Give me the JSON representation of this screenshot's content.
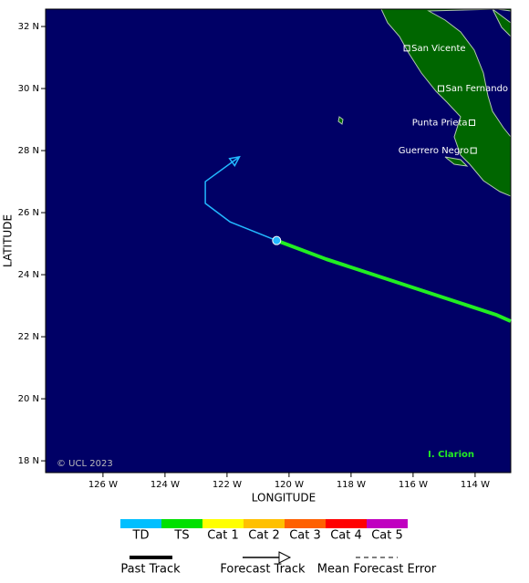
{
  "map": {
    "xaxis_label": "LONGITUDE",
    "yaxis_label": "LATITUDE",
    "lonlim": [
      -127.85,
      -112.85
    ],
    "latlim": [
      17.62,
      32.56
    ],
    "lon_ticks": [
      {
        "value": -126,
        "label": "126 W"
      },
      {
        "value": -124,
        "label": "124 W"
      },
      {
        "value": -122,
        "label": "122 W"
      },
      {
        "value": -120,
        "label": "120 W"
      },
      {
        "value": -118,
        "label": "118 W"
      },
      {
        "value": -116,
        "label": "116 W"
      },
      {
        "value": -114,
        "label": "114 W"
      }
    ],
    "lat_ticks": [
      {
        "value": 18,
        "label": "18 N"
      },
      {
        "value": 20,
        "label": "20 N"
      },
      {
        "value": 22,
        "label": "22 N"
      },
      {
        "value": 24,
        "label": "24 N"
      },
      {
        "value": 26,
        "label": "26 N"
      },
      {
        "value": 28,
        "label": "28 N"
      },
      {
        "value": 30,
        "label": "30 N"
      },
      {
        "value": 32,
        "label": "32 N"
      }
    ],
    "cities": [
      {
        "name": "San Vicente",
        "lon": -116.2,
        "lat": 31.3
      },
      {
        "name": "San Fernando",
        "lon": -115.1,
        "lat": 30.0
      },
      {
        "name": "Punta Prieta",
        "lon": -114.1,
        "lat": 28.9
      },
      {
        "name": "Guerrero Negro",
        "lon": -114.05,
        "lat": 28.0
      }
    ],
    "past_track": {
      "color": "#22ee22",
      "lon": [
        -112.85,
        -113.3,
        -118.8,
        -120.4
      ],
      "lat": [
        22.5,
        22.7,
        24.5,
        25.1
      ]
    },
    "forecast_track": {
      "color": "#22b8ff",
      "lon": [
        -120.4,
        -121.9,
        -122.7,
        -122.7,
        -121.6
      ],
      "lat": [
        25.1,
        25.7,
        26.3,
        27.0,
        27.8
      ]
    },
    "credit": "© UCL 2023",
    "storm_name": "I. Clarion"
  },
  "legend": {
    "categories": [
      {
        "label": "TD",
        "color": "#00bfff"
      },
      {
        "label": "TS",
        "color": "#00e000"
      },
      {
        "label": "Cat 1",
        "color": "#ffff00"
      },
      {
        "label": "Cat 2",
        "color": "#ffc000"
      },
      {
        "label": "Cat 3",
        "color": "#ff6000"
      },
      {
        "label": "Cat 4",
        "color": "#ff0000"
      },
      {
        "label": "Cat 5",
        "color": "#c000c0"
      }
    ],
    "past_track": "Past Track",
    "forecast_track": "Forecast Track",
    "mean_error": "Mean Forecast Error"
  }
}
